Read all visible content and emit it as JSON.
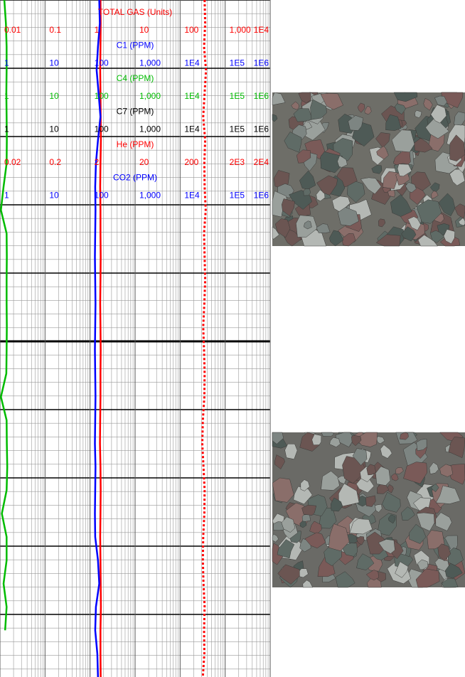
{
  "chart_data": {
    "type": "mudlog",
    "log_scale": true,
    "grid": true,
    "series": [
      {
        "name": "TOTAL GAS (Units)",
        "color": "#ff0000",
        "style": "solid",
        "xlim": [
          0.01,
          10000
        ],
        "ticks": [
          0.01,
          0.1,
          1,
          10,
          100,
          {
            "value": 1000,
            "label": "1,000"
          },
          {
            "value": 10000,
            "label": "1E4"
          }
        ],
        "values": [
          1.7,
          1.72,
          1.7,
          1.68,
          1.7,
          1.72,
          1.74,
          1.7,
          1.68,
          1.7,
          1.7,
          1.72,
          1.7,
          1.68,
          1.7,
          1.72,
          1.7,
          1.7,
          1.68,
          1.66,
          1.7,
          1.72,
          1.7,
          1.68,
          1.7,
          1.72,
          1.74,
          1.7,
          1.7,
          1.72
        ]
      },
      {
        "name": "C1 (PPM)",
        "color": "#0000ff",
        "style": "solid",
        "xlim": [
          1,
          1000000
        ],
        "ticks": [
          1,
          10,
          100,
          {
            "value": 1000,
            "label": "1,000"
          },
          {
            "value": 10000,
            "label": "1E4"
          },
          {
            "value": 100000,
            "label": "1E5"
          },
          {
            "value": 1000000,
            "label": "1E6"
          }
        ],
        "values": [
          160,
          165,
          150,
          140,
          155,
          170,
          150,
          135,
          130,
          132,
          130,
          128,
          130,
          132,
          130,
          128,
          130,
          132,
          130,
          128,
          132,
          130,
          128,
          130,
          150,
          160,
          135,
          130,
          145,
          150
        ]
      },
      {
        "name": "C4 (PPM)",
        "color": "#00bb00",
        "style": "solid",
        "xlim": [
          1,
          1000000
        ],
        "ticks": [
          1,
          10,
          100,
          {
            "value": 1000,
            "label": "1,000"
          },
          {
            "value": 10000,
            "label": "1E4"
          },
          {
            "value": 100000,
            "label": "1E5"
          },
          {
            "value": 1000000,
            "label": "1E6"
          }
        ],
        "values": [
          1.25,
          1.35,
          1.4,
          1.4,
          1.38,
          1.4,
          1.42,
          1.4,
          1.2,
          1.05,
          1.4,
          1.42,
          1.4,
          1.4,
          1.42,
          1.4,
          1.38,
          1.05,
          1.4,
          1.42,
          1.45,
          1.4,
          1.1,
          1.4,
          1.4,
          1.2,
          1.4,
          1.3,
          null,
          null
        ]
      },
      {
        "name": "C7 (PPM)",
        "color": "#000000",
        "style": "solid",
        "xlim": [
          1,
          1000000
        ],
        "ticks": [
          1,
          10,
          100,
          {
            "value": 1000,
            "label": "1,000"
          },
          {
            "value": 10000,
            "label": "1E4"
          },
          {
            "value": 100000,
            "label": "1E5"
          },
          {
            "value": 1000000,
            "label": "1E6"
          }
        ]
      },
      {
        "name": "He (PPM)",
        "color": "#ff0000",
        "style": "dotted",
        "xlim": [
          0.02,
          20000
        ],
        "ticks": [
          0.02,
          0.2,
          2,
          20,
          200,
          {
            "value": 2000,
            "label": "2E3"
          },
          {
            "value": 20000,
            "label": "2E4"
          }
        ],
        "values": [
          700,
          720,
          680,
          750,
          700,
          650,
          720,
          690,
          700,
          740,
          680,
          700,
          720,
          690,
          650,
          680,
          700,
          690,
          640,
          620,
          660,
          700,
          690,
          650,
          640,
          660,
          700,
          680,
          690,
          640
        ]
      },
      {
        "name": "CO2 (PPM)",
        "color": "#0000ff",
        "style": "solid",
        "xlim": [
          1,
          1000000
        ],
        "ticks": [
          1,
          10,
          100,
          {
            "value": 1000,
            "label": "1,000"
          },
          {
            "value": 10000,
            "label": "1E4"
          },
          {
            "value": 100000,
            "label": "1E5"
          },
          {
            "value": 1000000,
            "label": "1E6"
          }
        ]
      }
    ]
  }
}
